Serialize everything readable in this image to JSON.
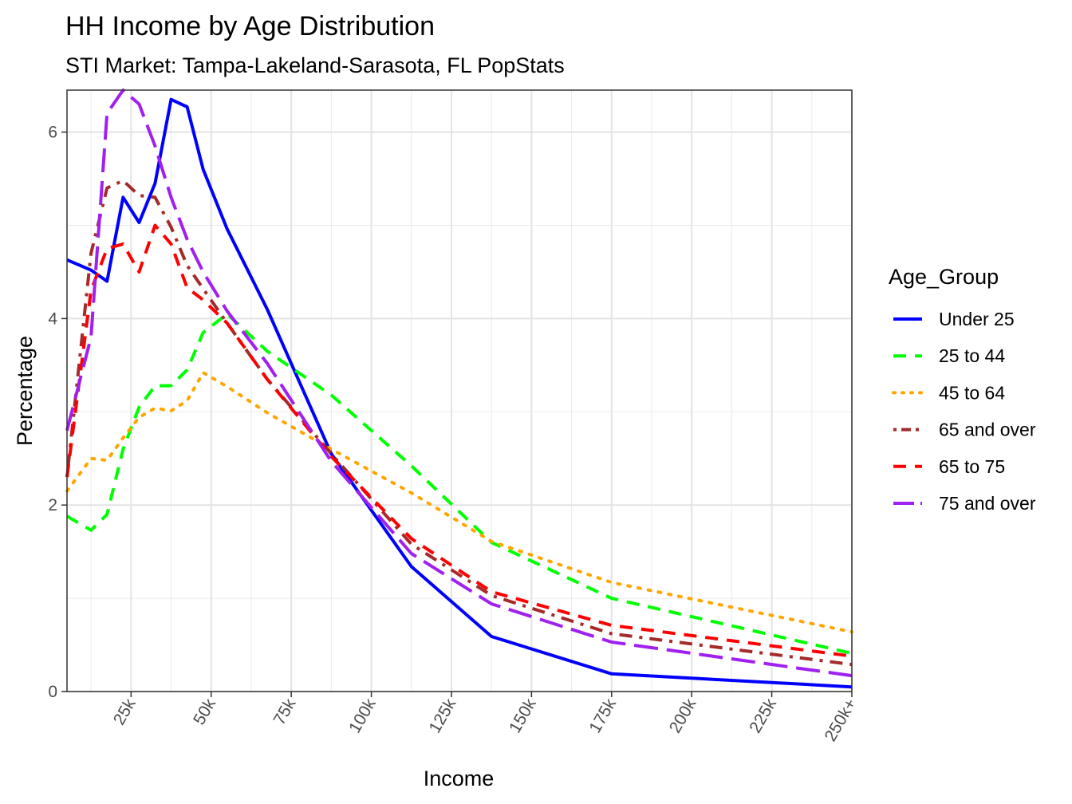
{
  "chart_data": {
    "type": "line",
    "title": "HH Income by Age Distribution",
    "subtitle": "STI Market: Tampa-Lakeland-Sarasota, FL PopStats",
    "xlabel": "Income",
    "ylabel": "Percentage",
    "xlim": [
      5,
      250
    ],
    "ylim": [
      0,
      6.45
    ],
    "x_ticks": [
      25,
      50,
      75,
      100,
      125,
      150,
      175,
      200,
      225,
      250
    ],
    "x_tick_labels": [
      "25k",
      "50k",
      "75k",
      "100k",
      "125k",
      "150k",
      "175k",
      "200k",
      "225k",
      "250k+"
    ],
    "y_ticks": [
      0,
      2,
      4,
      6
    ],
    "y_tick_labels": [
      "0",
      "2",
      "4",
      "6"
    ],
    "grid": true,
    "legend_title": "Age_Group",
    "legend_position": "right",
    "x": [
      5,
      12.5,
      17.5,
      22.5,
      27.5,
      32.5,
      37.5,
      42.5,
      47.5,
      55,
      67.5,
      87.5,
      112.5,
      137.5,
      175,
      250
    ],
    "series": [
      {
        "name": "Under 25",
        "color": "#0000FF",
        "dash": "solid",
        "values": [
          4.63,
          4.52,
          4.4,
          5.3,
          5.03,
          5.45,
          6.35,
          6.27,
          5.6,
          4.96,
          4.1,
          2.55,
          1.34,
          0.59,
          0.19,
          0.05
        ]
      },
      {
        "name": "25 to 44",
        "color": "#00FF00",
        "dash": "dashed",
        "values": [
          1.88,
          1.73,
          1.9,
          2.6,
          3.05,
          3.28,
          3.28,
          3.45,
          3.85,
          4.05,
          3.65,
          3.18,
          2.42,
          1.6,
          1.0,
          0.41
        ]
      },
      {
        "name": "45 to 64",
        "color": "#FFA500",
        "dash": "dotted",
        "values": [
          2.15,
          2.5,
          2.48,
          2.72,
          2.94,
          3.04,
          3.01,
          3.12,
          3.42,
          3.27,
          2.99,
          2.6,
          2.13,
          1.61,
          1.17,
          0.64
        ]
      },
      {
        "name": "65 and over",
        "color": "#A52A2A",
        "dash": "dotdash",
        "values": [
          2.3,
          4.7,
          5.4,
          5.48,
          5.32,
          5.3,
          4.98,
          4.57,
          4.32,
          3.95,
          3.35,
          2.55,
          1.58,
          1.03,
          0.62,
          0.29
        ]
      },
      {
        "name": "65 to 75",
        "color": "#FF0000",
        "dash": "dashed",
        "values": [
          2.3,
          4.3,
          4.75,
          4.8,
          4.5,
          5.0,
          4.8,
          4.33,
          4.2,
          3.95,
          3.35,
          2.52,
          1.64,
          1.07,
          0.71,
          0.38
        ]
      },
      {
        "name": "75 and over",
        "color": "#A020F0",
        "dash": "longdash",
        "values": [
          2.8,
          3.8,
          6.2,
          6.45,
          6.3,
          5.85,
          5.3,
          4.85,
          4.5,
          4.08,
          3.52,
          2.47,
          1.48,
          0.94,
          0.53,
          0.17
        ]
      }
    ]
  }
}
